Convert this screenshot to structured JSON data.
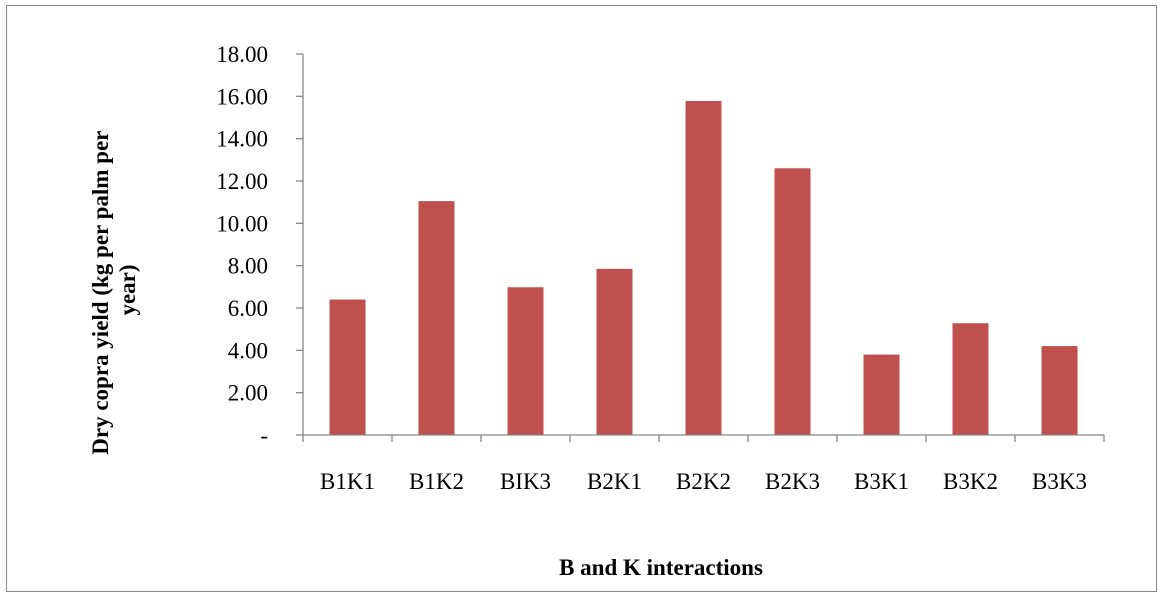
{
  "chart_data": {
    "type": "bar",
    "title": "",
    "xlabel": "B and K interactions",
    "ylabel_lines": [
      "Dry copra yield (kg per palm per",
      "year)"
    ],
    "categories": [
      "B1K1",
      "B1K2",
      "BIK3",
      "B2K1",
      "B2K2",
      "B2K3",
      "B3K1",
      "B3K2",
      "B3K3"
    ],
    "values": [
      6.4,
      11.05,
      6.98,
      7.85,
      15.78,
      12.6,
      3.8,
      5.28,
      4.2
    ],
    "ylim": [
      0,
      18
    ],
    "yticks": [
      0,
      2,
      4,
      6,
      8,
      10,
      12,
      14,
      16,
      18
    ],
    "ytick_labels": [
      "-",
      "2.00",
      "4.00",
      "6.00",
      "8.00",
      "10.00",
      "12.00",
      "14.00",
      "16.00",
      "18.00"
    ],
    "grid": false,
    "legend": "none",
    "bar_color": "#c0504d",
    "axis_color": "#868686"
  }
}
